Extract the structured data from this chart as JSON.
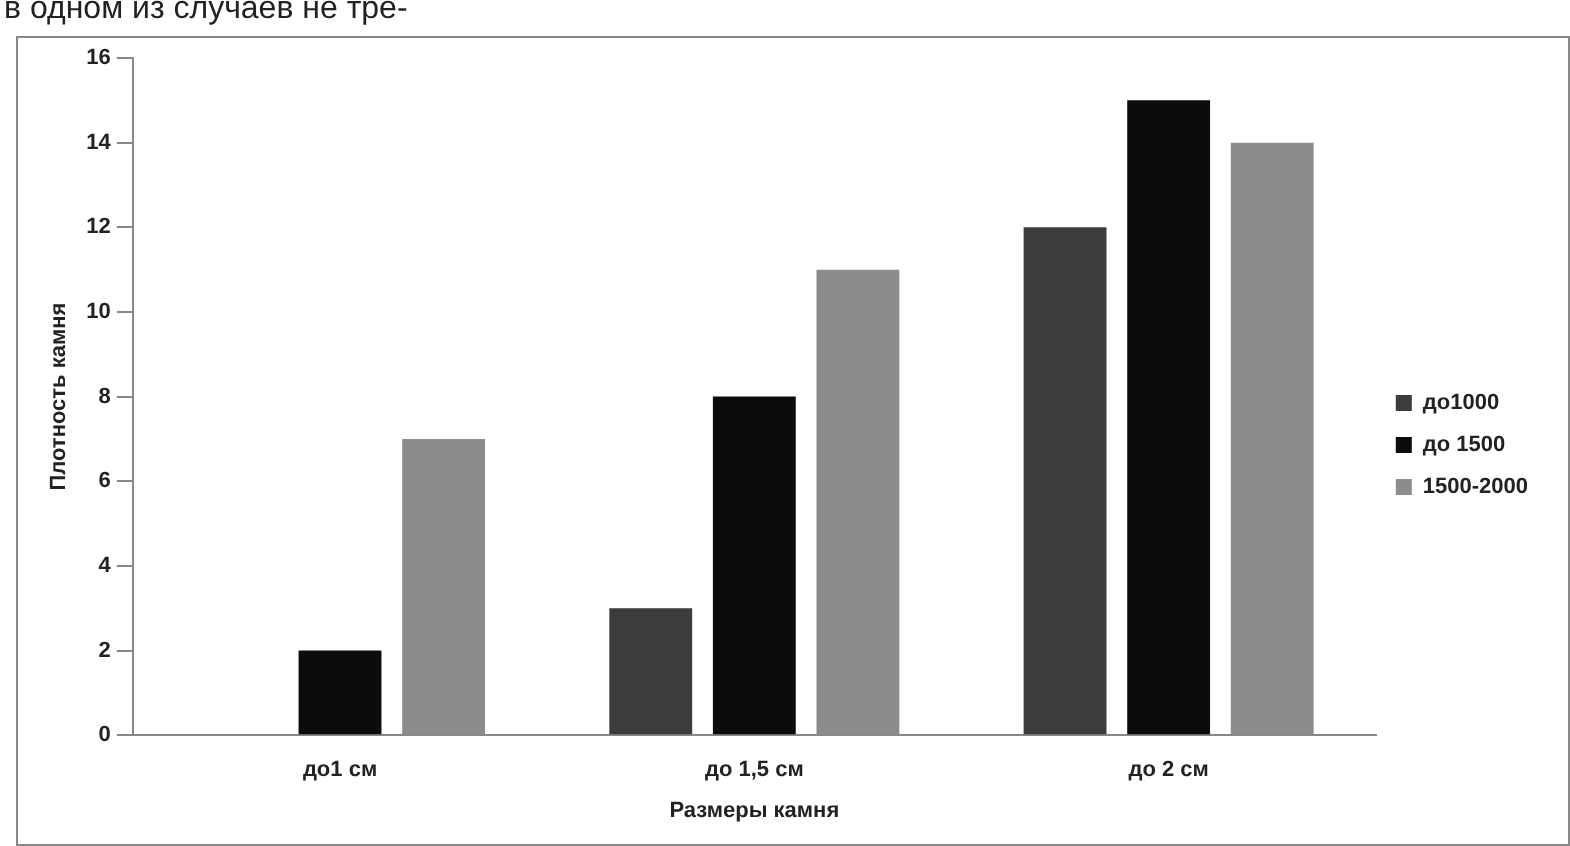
{
  "chart_data": {
    "type": "bar",
    "xlabel": "Размеры камня",
    "ylabel": "Плотность камня",
    "annotations": [
      "в одном из случаев не тре-"
    ],
    "categories": [
      "до1 см",
      "до 1,5 см",
      "до 2 см"
    ],
    "series": [
      {
        "name": "до1000",
        "color": "#3c3c3c",
        "values": [
          0,
          3,
          12
        ]
      },
      {
        "name": "до 1500",
        "color": "#0c0c0c",
        "values": [
          2,
          8,
          15
        ]
      },
      {
        "name": "1500-2000",
        "color": "#8c8c8c",
        "values": [
          7,
          11,
          14
        ]
      }
    ],
    "ylim": [
      0,
      16
    ],
    "yticks": [
      0,
      2,
      4,
      6,
      8,
      10,
      12,
      14,
      16
    ],
    "grid": false,
    "legend": "right"
  }
}
